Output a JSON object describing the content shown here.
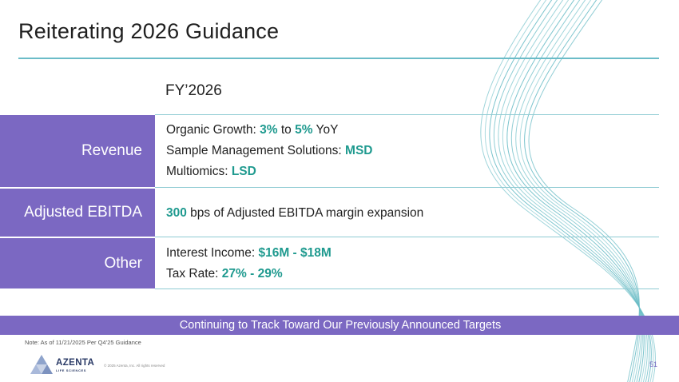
{
  "slide": {
    "title": "Reiterating 2026 Guidance",
    "column_header": "FY’2026"
  },
  "rows": [
    {
      "label": "Revenue",
      "lines": [
        {
          "parts": [
            {
              "text": "Organic Growth: ",
              "hl": false
            },
            {
              "text": "3%",
              "hl": true
            },
            {
              "text": " to ",
              "hl": false
            },
            {
              "text": "5%",
              "hl": true
            },
            {
              "text": " YoY",
              "hl": false
            }
          ]
        },
        {
          "parts": [
            {
              "text": "Sample Management Solutions: ",
              "hl": false
            },
            {
              "text": "MSD",
              "hl": true
            }
          ]
        },
        {
          "parts": [
            {
              "text": "Multiomics: ",
              "hl": false
            },
            {
              "text": "LSD",
              "hl": true
            }
          ]
        }
      ]
    },
    {
      "label": "Adjusted EBITDA",
      "lines": [
        {
          "parts": [
            {
              "text": "300",
              "hl": true
            },
            {
              "text": " bps of Adjusted EBITDA margin expansion",
              "hl": false
            }
          ]
        }
      ]
    },
    {
      "label": "Other",
      "lines": [
        {
          "parts": [
            {
              "text": "Interest Income: ",
              "hl": false
            },
            {
              "text": "$16M - $18M",
              "hl": true
            }
          ]
        },
        {
          "parts": [
            {
              "text": "Tax Rate: ",
              "hl": false
            },
            {
              "text": "27% - 29%",
              "hl": true
            }
          ]
        }
      ]
    }
  ],
  "banner": "Continuing to Track Toward Our Previously Announced Targets",
  "note": "Note: As of 11/21/2025 Per Q4’25 Guidance",
  "footer": {
    "logo_name": "AZENTA",
    "logo_sub": "LIFE SCIENCES",
    "copyright": "© 2025 Azenta, Inc. All rights reserved",
    "page_number": "51"
  },
  "colors": {
    "accent_purple": "#7b68c2",
    "highlight_teal": "#1f9a8f",
    "rule_teal": "#6bbcc8"
  }
}
